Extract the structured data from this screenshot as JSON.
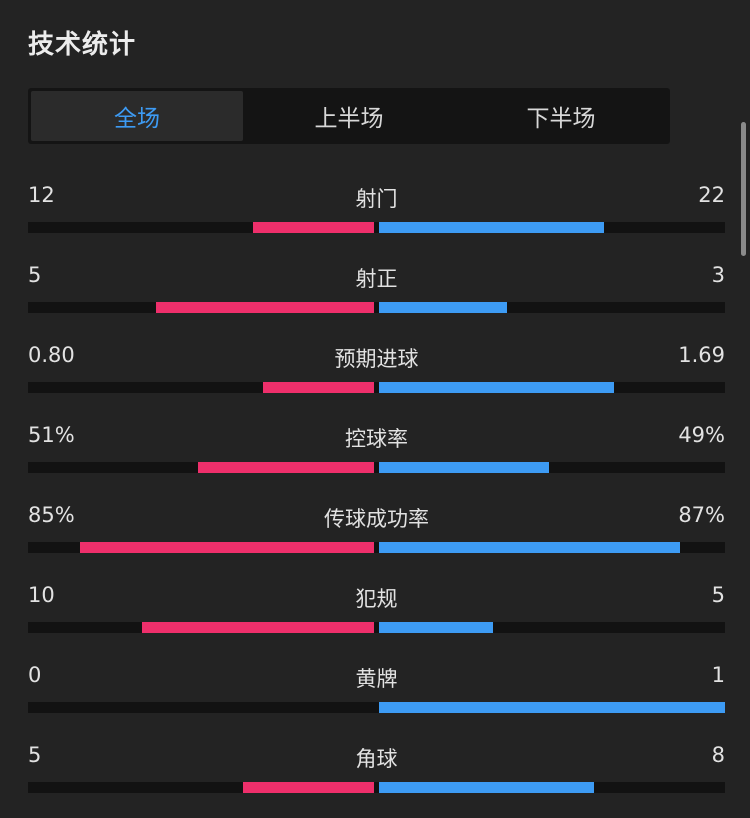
{
  "header": {
    "title": "技术统计"
  },
  "tabs": [
    {
      "label": "全场",
      "active": true
    },
    {
      "label": "上半场",
      "active": false
    },
    {
      "label": "下半场",
      "active": false
    }
  ],
  "colors": {
    "home_bar": "#ee2f6b",
    "away_bar": "#3d9bf4",
    "track": "#121212",
    "background": "#232323",
    "active_tab_text": "#3d9bf4"
  },
  "stats": [
    {
      "label": "射门",
      "home": "12",
      "away": "22",
      "home_fill": 0.35,
      "away_fill": 0.65
    },
    {
      "label": "射正",
      "home": "5",
      "away": "3",
      "home_fill": 0.63,
      "away_fill": 0.37
    },
    {
      "label": "预期进球",
      "home": "0.80",
      "away": "1.69",
      "home_fill": 0.32,
      "away_fill": 0.68
    },
    {
      "label": "控球率",
      "home": "51%",
      "away": "49%",
      "home_fill": 0.51,
      "away_fill": 0.49
    },
    {
      "label": "传球成功率",
      "home": "85%",
      "away": "87%",
      "home_fill": 0.85,
      "away_fill": 0.87
    },
    {
      "label": "犯规",
      "home": "10",
      "away": "5",
      "home_fill": 0.67,
      "away_fill": 0.33
    },
    {
      "label": "黄牌",
      "home": "0",
      "away": "1",
      "home_fill": 0.0,
      "away_fill": 1.0
    },
    {
      "label": "角球",
      "home": "5",
      "away": "8",
      "home_fill": 0.38,
      "away_fill": 0.62
    }
  ]
}
